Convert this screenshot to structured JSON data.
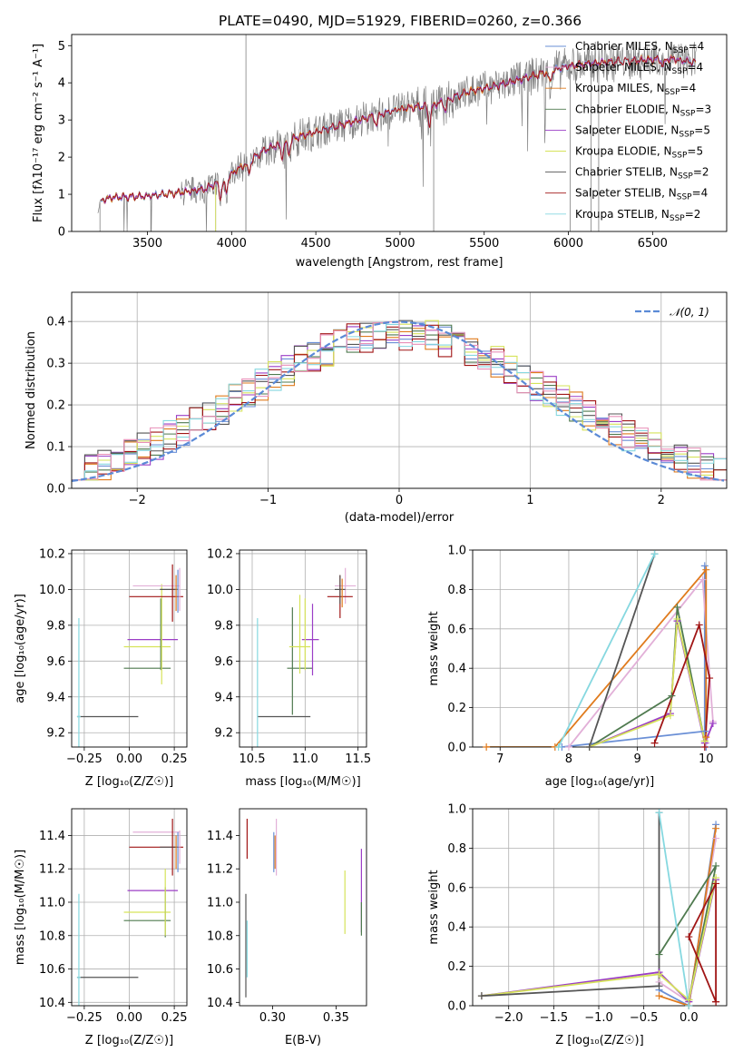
{
  "title": "PLATE=0490, MJD=51929, FIBERID=0260, z=0.366",
  "colors": {
    "Chabrier MILES": "#6a8fd6",
    "Salpeter MILES": "#e2b0d8",
    "Kroupa MILES": "#e07b1d",
    "Chabrier ELODIE": "#4f7a4f",
    "Salpeter ELODIE": "#9b3ec6",
    "Kroupa ELODIE": "#d6e35a",
    "Chabrier STELIB": "#555555",
    "Salpeter STELIB": "#a01515",
    "Kroupa STELIB": "#86d8e0",
    "data": "#808080",
    "normal": "#5b8ad6",
    "hist_colors": [
      "#6a8fd6",
      "#9b3ec6",
      "#e07b1d",
      "#4f7a4f",
      "#d6e35a",
      "#555555",
      "#a01515",
      "#86d8e0",
      "#e88fb8"
    ]
  },
  "chart_data": [
    {
      "id": "spectrum",
      "type": "line",
      "xlabel": "wavelength [Angstrom, rest frame]",
      "ylabel": "Flux [f$_\\lambda$10$^{-17}$ erg cm$^{-2}$ s$^{-1}$ A$^{-1}$]",
      "ylabel_display": "Flux [fλ10⁻¹⁷ erg cm⁻² s⁻¹ A⁻¹]",
      "xlim": [
        3050,
        6940
      ],
      "ylim": [
        0,
        5.3
      ],
      "xticks": [
        3500,
        4000,
        4500,
        5000,
        5500,
        6000,
        6500
      ],
      "yticks": [
        0,
        1,
        2,
        3,
        4,
        5
      ],
      "legend_loc": "right",
      "legend": [
        {
          "model": "Chabrier MILES",
          "label": "Chabrier MILES, N",
          "sub": "SSP",
          "n": "=4"
        },
        {
          "model": "Salpeter MILES",
          "label": "Salpeter MILES, N",
          "sub": "SSP",
          "n": "=4"
        },
        {
          "model": "Kroupa MILES",
          "label": "Kroupa MILES, N",
          "sub": "SSP",
          "n": "=4"
        },
        {
          "model": "Chabrier ELODIE",
          "label": "Chabrier ELODIE, N",
          "sub": "SSP",
          "n": "=3"
        },
        {
          "model": "Salpeter ELODIE",
          "label": "Salpeter ELODIE, N",
          "sub": "SSP",
          "n": "=5"
        },
        {
          "model": "Kroupa ELODIE",
          "label": "Kroupa ELODIE, N",
          "sub": "SSP",
          "n": "=5"
        },
        {
          "model": "Chabrier STELIB",
          "label": "Chabrier STELIB, N",
          "sub": "SSP",
          "n": "=2"
        },
        {
          "model": "Salpeter STELIB",
          "label": "Salpeter STELIB, N",
          "sub": "SSP",
          "n": "=4"
        },
        {
          "model": "Kroupa STELIB",
          "label": "Kroupa STELIB, N",
          "sub": "SSP",
          "n": "=2"
        }
      ],
      "continuum": [
        [
          3210,
          0.6
        ],
        [
          3230,
          0.85
        ],
        [
          3300,
          0.92
        ],
        [
          3500,
          0.95
        ],
        [
          3700,
          1.05
        ],
        [
          3850,
          1.15
        ],
        [
          4000,
          1.55
        ],
        [
          4200,
          2.2
        ],
        [
          4400,
          2.55
        ],
        [
          4600,
          2.8
        ],
        [
          4800,
          3.05
        ],
        [
          5000,
          3.3
        ],
        [
          5200,
          3.4
        ],
        [
          5400,
          3.75
        ],
        [
          5600,
          3.95
        ],
        [
          5800,
          4.2
        ],
        [
          6000,
          4.45
        ],
        [
          6200,
          4.55
        ],
        [
          6400,
          4.6
        ],
        [
          6600,
          4.65
        ],
        [
          6750,
          4.55
        ]
      ],
      "dips": [
        [
          3933,
          0.45
        ],
        [
          3968,
          0.4
        ],
        [
          4102,
          0.3
        ],
        [
          4300,
          0.35
        ],
        [
          4340,
          0.3
        ],
        [
          4861,
          0.25
        ],
        [
          5175,
          0.5
        ],
        [
          5270,
          0.25
        ],
        [
          5890,
          0.3
        ],
        [
          6563,
          0.2
        ]
      ]
    },
    {
      "id": "residual_hist",
      "type": "line",
      "xlabel": "(data-model)/error",
      "ylabel": "Normed distribution",
      "xlim": [
        -2.5,
        2.5
      ],
      "ylim": [
        0,
        0.47
      ],
      "xticks": [
        -2,
        -1,
        0,
        1,
        2
      ],
      "yticks": [
        0.0,
        0.1,
        0.2,
        0.3,
        0.4
      ],
      "grid": true,
      "legend": "𝒩(0, 1)",
      "legend_loc": "upper right",
      "bin_width": 0.1
    },
    {
      "id": "age_vs_Z",
      "type": "scatter",
      "xlabel": "Z [log₁₀(Z/Z☉)]",
      "ylabel": "age  [log₁₀(age/yr)]",
      "xlim": [
        -0.32,
        0.32
      ],
      "ylim": [
        9.12,
        10.22
      ],
      "xticks": [
        -0.25,
        0.0,
        0.25
      ],
      "yticks": [
        9.2,
        9.4,
        9.6,
        9.8,
        10.0,
        10.2
      ],
      "grid": true,
      "points": [
        {
          "model": "Chabrier STELIB",
          "x": -0.12,
          "xerr": 0.17,
          "y": 9.29,
          "yerr": 0
        },
        {
          "model": "Kroupa STELIB",
          "x": -0.28,
          "xerr": 0.01,
          "y": 9.29,
          "yerr": 0.55
        },
        {
          "model": "Chabrier ELODIE",
          "x": 0.1,
          "xerr": 0.13,
          "y": 9.56,
          "yerr": 0
        },
        {
          "model": "Kroupa ELODIE",
          "x": 0.1,
          "xerr": 0.13,
          "y": 9.68,
          "yerr": 0
        },
        {
          "model": "Salpeter ELODIE",
          "x": 0.13,
          "xerr": 0.14,
          "y": 9.72,
          "yerr": 0
        },
        {
          "model": "Chabrier ELODIE",
          "x": 0.175,
          "xerr": 0.0,
          "y": 9.75,
          "yerr": 0.2
        },
        {
          "model": "Kroupa ELODIE",
          "x": 0.18,
          "xerr": 0.0,
          "y": 9.75,
          "yerr": 0.28
        },
        {
          "model": "Salpeter MILES",
          "x": 0.15,
          "xerr": 0.13,
          "y": 10.02,
          "yerr": 0
        },
        {
          "model": "Salpeter STELIB",
          "x": 0.15,
          "xerr": 0.15,
          "y": 9.96,
          "yerr": 0
        },
        {
          "model": "Chabrier STELIB",
          "x": 0.22,
          "xerr": 0.05,
          "y": 10.0,
          "yerr": 0
        },
        {
          "model": "Salpeter STELIB",
          "x": 0.24,
          "xerr": 0.0,
          "y": 9.98,
          "yerr": 0.16
        },
        {
          "model": "Chabrier MILES",
          "x": 0.27,
          "xerr": 0.0,
          "y": 9.99,
          "yerr": 0.12
        },
        {
          "model": "Kroupa MILES",
          "x": 0.26,
          "xerr": 0.0,
          "y": 9.98,
          "yerr": 0.1
        },
        {
          "model": "Salpeter MILES",
          "x": 0.28,
          "xerr": 0.0,
          "y": 10.0,
          "yerr": 0.12
        }
      ]
    },
    {
      "id": "age_vs_mass",
      "type": "scatter",
      "xlabel": "mass [log₁₀(M/M☉)]",
      "xlim": [
        10.38,
        11.58
      ],
      "ylim": [
        9.12,
        10.22
      ],
      "xticks": [
        10.5,
        11.0,
        11.5
      ],
      "yticks": [
        9.2,
        9.4,
        9.6,
        9.8,
        10.0,
        10.2
      ],
      "grid": true,
      "points": [
        {
          "model": "Chabrier STELIB",
          "x": 10.8,
          "xerr": 0.25,
          "y": 9.29,
          "yerr": 0
        },
        {
          "model": "Kroupa STELIB",
          "x": 10.55,
          "xerr": 0.0,
          "y": 9.29,
          "yerr": 0.55
        },
        {
          "model": "Chabrier ELODIE",
          "x": 10.88,
          "xerr": 0.0,
          "y": 9.6,
          "yerr": 0.3
        },
        {
          "model": "Chabrier ELODIE",
          "x": 10.95,
          "xerr": 0.12,
          "y": 9.56,
          "yerr": 0
        },
        {
          "model": "Kroupa ELODIE",
          "x": 10.95,
          "xerr": 0.1,
          "y": 9.68,
          "yerr": 0
        },
        {
          "model": "Kroupa ELODIE",
          "x": 10.95,
          "xerr": 0.0,
          "y": 9.75,
          "yerr": 0.22
        },
        {
          "model": "Salpeter ELODIE",
          "x": 11.07,
          "xerr": 0.0,
          "y": 9.72,
          "yerr": 0.2
        },
        {
          "model": "Salpeter ELODIE",
          "x": 11.05,
          "xerr": 0.08,
          "y": 9.72,
          "yerr": 0
        },
        {
          "model": "Kroupa ELODIE",
          "x": 11.0,
          "xerr": 0.0,
          "y": 9.75,
          "yerr": 0.2
        },
        {
          "model": "Salpeter MILES",
          "x": 11.38,
          "xerr": 0.1,
          "y": 10.02,
          "yerr": 0.1
        },
        {
          "model": "Salpeter STELIB",
          "x": 11.33,
          "xerr": 0.12,
          "y": 9.96,
          "yerr": 0.12
        },
        {
          "model": "Chabrier STELIB",
          "x": 11.33,
          "xerr": 0.05,
          "y": 10.0,
          "yerr": 0.08
        },
        {
          "model": "Kroupa MILES",
          "x": 11.35,
          "xerr": 0.0,
          "y": 9.98,
          "yerr": 0.08
        }
      ]
    },
    {
      "id": "mass_weight_vs_age",
      "type": "line",
      "xlabel": "age  [log₁₀(age/yr)]",
      "ylabel": "mass weight",
      "xlim": [
        6.6,
        10.3
      ],
      "ylim": [
        0,
        1.0
      ],
      "xticks": [
        7,
        8,
        9,
        10
      ],
      "yticks": [
        0.0,
        0.2,
        0.4,
        0.6,
        0.8,
        1.0
      ],
      "grid": true,
      "series": [
        {
          "model": "Chabrier MILES",
          "x": [
            7.9,
            9.98,
            9.98,
            10.0
          ],
          "y": [
            0.0,
            0.08,
            0.92,
            0.0
          ]
        },
        {
          "model": "Salpeter MILES",
          "x": [
            8.0,
            9.95,
            10.1,
            10.0
          ],
          "y": [
            0.0,
            0.85,
            0.13,
            0.02
          ]
        },
        {
          "model": "Kroupa MILES",
          "x": [
            6.8,
            7.8,
            10.0,
            10.0
          ],
          "y": [
            0.0,
            0.0,
            0.9,
            0.05
          ]
        },
        {
          "model": "Chabrier ELODIE",
          "x": [
            8.3,
            9.5,
            9.58,
            9.98
          ],
          "y": [
            0.0,
            0.26,
            0.71,
            0.03
          ]
        },
        {
          "model": "Salpeter ELODIE",
          "x": [
            8.3,
            9.48,
            9.58,
            9.98,
            10.1
          ],
          "y": [
            0.0,
            0.17,
            0.64,
            0.02,
            0.12
          ]
        },
        {
          "model": "Kroupa ELODIE",
          "x": [
            8.3,
            9.48,
            9.58,
            9.98
          ],
          "y": [
            0.0,
            0.16,
            0.65,
            0.03
          ]
        },
        {
          "model": "Chabrier STELIB",
          "x": [
            8.3,
            9.25
          ],
          "y": [
            0.0,
            0.98
          ]
        },
        {
          "model": "Salpeter STELIB",
          "x": [
            9.25,
            9.9,
            10.05,
            9.98
          ],
          "y": [
            0.02,
            0.62,
            0.35,
            0.0
          ]
        },
        {
          "model": "Kroupa STELIB",
          "x": [
            7.85,
            9.25
          ],
          "y": [
            0.0,
            0.98
          ]
        }
      ]
    },
    {
      "id": "mass_vs_Z",
      "type": "scatter",
      "xlabel": "Z [log₁₀(Z/Z☉)]",
      "ylabel": "mass [log₁₀(M/M☉)]",
      "xlim": [
        -0.32,
        0.32
      ],
      "ylim": [
        10.38,
        11.56
      ],
      "xticks": [
        -0.25,
        0.0,
        0.25
      ],
      "yticks": [
        10.4,
        10.6,
        10.8,
        11.0,
        11.2,
        11.4
      ],
      "grid": true,
      "points": [
        {
          "model": "Chabrier STELIB",
          "x": -0.12,
          "xerr": 0.17,
          "y": 10.55,
          "yerr": 0
        },
        {
          "model": "Kroupa STELIB",
          "x": -0.28,
          "xerr": 0.01,
          "y": 10.55,
          "yerr": 0.5
        },
        {
          "model": "Chabrier ELODIE",
          "x": 0.1,
          "xerr": 0.13,
          "y": 10.89,
          "yerr": 0
        },
        {
          "model": "Kroupa ELODIE",
          "x": 0.1,
          "xerr": 0.13,
          "y": 10.94,
          "yerr": 0
        },
        {
          "model": "Salpeter ELODIE",
          "x": 0.13,
          "xerr": 0.14,
          "y": 11.07,
          "yerr": 0
        },
        {
          "model": "Chabrier ELODIE",
          "x": 0.2,
          "xerr": 0.0,
          "y": 10.94,
          "yerr": 0.15
        },
        {
          "model": "Kroupa ELODIE",
          "x": 0.2,
          "xerr": 0.0,
          "y": 11.0,
          "yerr": 0.2
        },
        {
          "model": "Salpeter MILES",
          "x": 0.15,
          "xerr": 0.13,
          "y": 11.42,
          "yerr": 0
        },
        {
          "model": "Salpeter STELIB",
          "x": 0.15,
          "xerr": 0.15,
          "y": 11.33,
          "yerr": 0
        },
        {
          "model": "Chabrier STELIB",
          "x": 0.22,
          "xerr": 0.05,
          "y": 11.33,
          "yerr": 0
        },
        {
          "model": "Salpeter STELIB",
          "x": 0.24,
          "xerr": 0.0,
          "y": 11.33,
          "yerr": 0.17
        },
        {
          "model": "Chabrier MILES",
          "x": 0.27,
          "xerr": 0.0,
          "y": 11.3,
          "yerr": 0.12
        },
        {
          "model": "Kroupa MILES",
          "x": 0.26,
          "xerr": 0.0,
          "y": 11.3,
          "yerr": 0.1
        },
        {
          "model": "Salpeter MILES",
          "x": 0.28,
          "xerr": 0.0,
          "y": 11.33,
          "yerr": 0.1
        }
      ]
    },
    {
      "id": "mass_vs_ebv",
      "type": "scatter",
      "xlabel": "E(B-V)",
      "xlim": [
        0.274,
        0.374
      ],
      "ylim": [
        10.38,
        11.56
      ],
      "xticks": [
        0.3,
        0.35
      ],
      "yticks": [
        10.4,
        10.6,
        10.8,
        11.0,
        11.2,
        11.4
      ],
      "grid": false,
      "points": [
        {
          "model": "Chabrier STELIB",
          "x": 0.279,
          "xerr": 0,
          "y": 10.74,
          "yerr": 0.31
        },
        {
          "model": "Kroupa STELIB",
          "x": 0.28,
          "xerr": 0,
          "y": 10.72,
          "yerr": 0.17
        },
        {
          "model": "Salpeter STELIB",
          "x": 0.28,
          "xerr": 0,
          "y": 11.38,
          "yerr": 0.12
        },
        {
          "model": "Chabrier MILES",
          "x": 0.301,
          "xerr": 0,
          "y": 11.3,
          "yerr": 0.12
        },
        {
          "model": "Salpeter MILES",
          "x": 0.303,
          "xerr": 0,
          "y": 11.33,
          "yerr": 0.17
        },
        {
          "model": "Kroupa MILES",
          "x": 0.302,
          "xerr": 0,
          "y": 11.3,
          "yerr": 0.1
        },
        {
          "model": "Kroupa ELODIE",
          "x": 0.357,
          "xerr": 0,
          "y": 11.0,
          "yerr": 0.19
        },
        {
          "model": "Salpeter ELODIE",
          "x": 0.37,
          "xerr": 0,
          "y": 11.07,
          "yerr": 0.25
        },
        {
          "model": "Chabrier ELODIE",
          "x": 0.37,
          "xerr": 0,
          "y": 10.9,
          "yerr": 0.1
        }
      ]
    },
    {
      "id": "mass_weight_vs_Z",
      "type": "line",
      "xlabel": "Z [log₁₀(Z/Z☉)]",
      "ylabel": "mass weight",
      "xlim": [
        -2.4,
        0.42
      ],
      "ylim": [
        0,
        1.0
      ],
      "xticks": [
        -2.0,
        -1.5,
        -1.0,
        -0.5,
        0.0
      ],
      "yticks": [
        0.0,
        0.2,
        0.4,
        0.6,
        0.8,
        1.0
      ],
      "grid": true,
      "series": [
        {
          "model": "Chabrier MILES",
          "x": [
            -0.33,
            0.0,
            0.3
          ],
          "y": [
            0.08,
            0.0,
            0.92
          ]
        },
        {
          "model": "Salpeter MILES",
          "x": [
            -0.33,
            0.0,
            0.3
          ],
          "y": [
            0.12,
            0.02,
            0.85
          ]
        },
        {
          "model": "Kroupa MILES",
          "x": [
            -0.33,
            0.0,
            0.3
          ],
          "y": [
            0.05,
            0.0,
            0.9
          ]
        },
        {
          "model": "Chabrier ELODIE",
          "x": [
            -0.33,
            0.3,
            0.0
          ],
          "y": [
            0.26,
            0.71,
            0.03
          ]
        },
        {
          "model": "Salpeter ELODIE",
          "x": [
            -2.3,
            -0.33,
            0.0,
            0.3
          ],
          "y": [
            0.05,
            0.17,
            0.02,
            0.64
          ]
        },
        {
          "model": "Kroupa ELODIE",
          "x": [
            -2.3,
            -0.33,
            0.0,
            0.3
          ],
          "y": [
            0.05,
            0.16,
            0.03,
            0.65
          ]
        },
        {
          "model": "Chabrier STELIB",
          "x": [
            -2.3,
            -0.33,
            -0.33
          ],
          "y": [
            0.05,
            0.1,
            0.98
          ]
        },
        {
          "model": "Salpeter STELIB",
          "x": [
            0.3,
            0.3,
            0.0,
            0.3
          ],
          "y": [
            0.02,
            0.62,
            0.35,
            0.02
          ]
        },
        {
          "model": "Kroupa STELIB",
          "x": [
            -0.33,
            0.0
          ],
          "y": [
            0.98,
            0.0
          ]
        }
      ]
    }
  ]
}
